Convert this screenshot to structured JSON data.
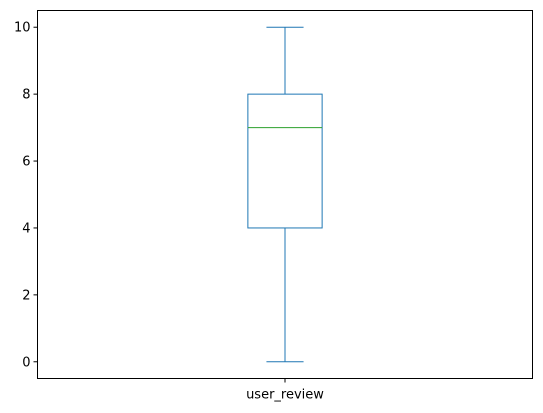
{
  "chart_data": {
    "type": "box",
    "categories": [
      "user_review"
    ],
    "series": [
      {
        "whisker_low": 0,
        "q1": 4,
        "median": 7,
        "q3": 8,
        "whisker_high": 10
      }
    ],
    "yticks": [
      0,
      2,
      4,
      6,
      8,
      10
    ],
    "ylim": [
      -0.5,
      10.5
    ],
    "grid": false,
    "colors": {
      "box": "#1f77b4",
      "median": "#2ca02c",
      "axes": "#000000"
    }
  }
}
